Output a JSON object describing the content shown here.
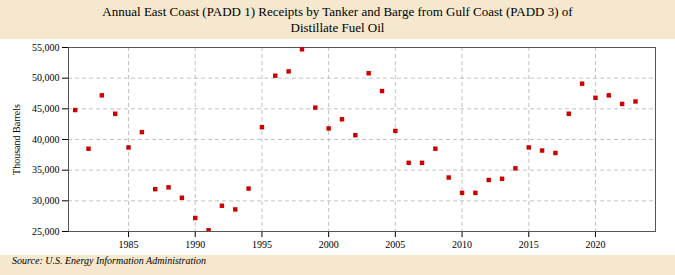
{
  "chart_data": {
    "type": "scatter",
    "title": "Annual East Coast (PADD 1) Receipts by Tanker and Barge from Gulf Coast (PADD 3) of\nDistillate Fuel Oil",
    "ylabel": "Thousand Barrels",
    "annotations": [
      "Source: U.S. Energy Information Administration"
    ],
    "x": [
      1981,
      1982,
      1983,
      1984,
      1985,
      1986,
      1987,
      1988,
      1989,
      1990,
      1991,
      1992,
      1993,
      1994,
      1995,
      1996,
      1997,
      1998,
      1999,
      2000,
      2001,
      2002,
      2003,
      2004,
      2005,
      2006,
      2007,
      2008,
      2009,
      2010,
      2011,
      2012,
      2013,
      2014,
      2015,
      2016,
      2017,
      2018,
      2019,
      2020,
      2021,
      2022,
      2023
    ],
    "values": [
      44800,
      38500,
      47200,
      44200,
      38700,
      41200,
      31900,
      32200,
      30500,
      27200,
      25200,
      29200,
      28600,
      32000,
      42000,
      50400,
      51100,
      54700,
      45200,
      41800,
      43300,
      40700,
      50800,
      47900,
      41400,
      36200,
      36200,
      38500,
      33800,
      31300,
      31300,
      33400,
      33600,
      35300,
      38700,
      38200,
      37800,
      44200,
      49100,
      46800,
      47200,
      45800,
      46200
    ],
    "color": "#cc0000",
    "marker": "square",
    "xlim": [
      1980.5,
      2024.5
    ],
    "xticks": [
      1985,
      1990,
      1995,
      2000,
      2005,
      2010,
      2015,
      2020
    ],
    "ylim": [
      25000,
      55000
    ],
    "yticks": [
      {
        "value": 25000,
        "label": "25,000"
      },
      {
        "value": 30000,
        "label": "30,000"
      },
      {
        "value": 35000,
        "label": "35,000"
      },
      {
        "value": 40000,
        "label": "40,000"
      },
      {
        "value": 45000,
        "label": "45,000"
      },
      {
        "value": 50000,
        "label": "50,000"
      },
      {
        "value": 55000,
        "label": "55,000"
      }
    ],
    "grid": true
  }
}
